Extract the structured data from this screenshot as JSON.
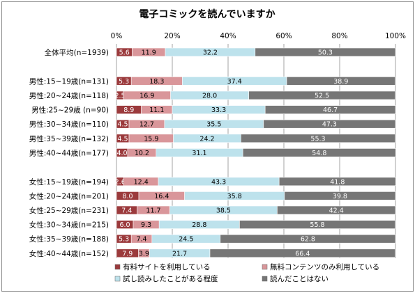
{
  "chart_data": {
    "type": "bar",
    "stacked": true,
    "orientation": "horizontal",
    "percent_stacked": true,
    "title": "電子コミックを読んでいますか",
    "xlim": [
      0,
      100
    ],
    "x_ticks": [
      "0%",
      "20%",
      "40%",
      "60%",
      "80%",
      "100%"
    ],
    "gridlines": true,
    "legend_position": "bottom",
    "categories": [
      "全体平均(n=1939)",
      "男性:15~19歳(n=131)",
      "男性:20~24歳(n=118)",
      "男性:25~29歳 (n=90)",
      "男性:30~34歳(n=110)",
      "男性:35~39歳(n=132)",
      "男性:40~44歳(n=177)",
      "女性:15~19歳(n=194)",
      "女性:20~24歳(n=201)",
      "女性:25~29歳(n=231)",
      "女性:30~34歳(n=215)",
      "女性:35~39歳(n=188)",
      "女性:40~44歳(n=152)"
    ],
    "group_breaks_after": [
      0,
      6
    ],
    "series": [
      {
        "name": "有料サイトを利用している",
        "color": "#9b3a3c",
        "label_color": "#ffffff",
        "values": [
          5.6,
          5.3,
          2.5,
          8.9,
          4.5,
          4.5,
          4.0,
          2.6,
          8.0,
          7.4,
          6.0,
          5.3,
          7.9
        ]
      },
      {
        "name": "無料コンテンツのみ利用している",
        "color": "#d9969a",
        "label_color": "#000000",
        "values": [
          11.9,
          18.3,
          16.9,
          11.1,
          12.7,
          15.9,
          10.2,
          12.4,
          16.4,
          11.7,
          9.3,
          7.4,
          3.9
        ]
      },
      {
        "name": "試し読みしたことがある程度",
        "color": "#bde2ec",
        "label_color": "#000000",
        "values": [
          32.2,
          37.4,
          28.0,
          33.3,
          35.5,
          24.2,
          31.1,
          43.3,
          35.8,
          38.5,
          28.8,
          24.5,
          21.7
        ]
      },
      {
        "name": "読んだことはない",
        "color": "#767676",
        "label_color": "#ffffff",
        "values": [
          50.3,
          38.9,
          52.5,
          46.7,
          47.3,
          55.3,
          54.8,
          41.8,
          39.8,
          42.4,
          55.8,
          62.8,
          66.4
        ]
      }
    ]
  }
}
